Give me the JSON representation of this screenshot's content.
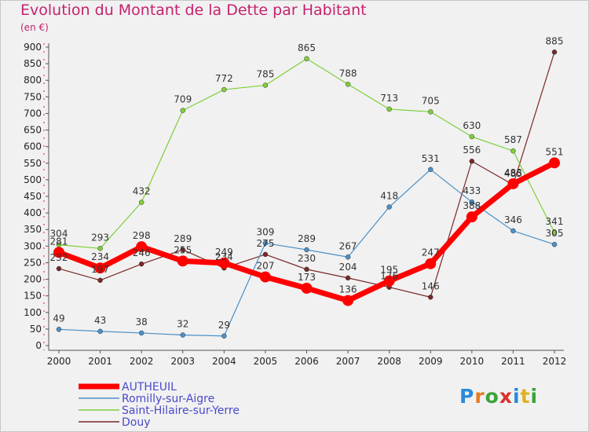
{
  "title": "Evolution du Montant de la Dette par Habitant",
  "unit": "(en €)",
  "logo": [
    "P",
    "r",
    "o",
    "x",
    "i",
    "t",
    "i"
  ],
  "chart_data": {
    "type": "line",
    "title": "Evolution du Montant de la Dette par Habitant",
    "ylabel": "(en €)",
    "ylim": [
      0,
      900
    ],
    "yticks": [
      0,
      50,
      100,
      150,
      200,
      250,
      300,
      350,
      400,
      450,
      500,
      550,
      600,
      650,
      700,
      750,
      800,
      850,
      900
    ],
    "x": [
      "2000",
      "2001",
      "2002",
      "2003",
      "2004",
      "2005",
      "2006",
      "2007",
      "2008",
      "2009",
      "2010",
      "2011",
      "2012"
    ],
    "grid": false,
    "legend": "bottom-left",
    "series": [
      {
        "name": "AUTHEUIL",
        "color": "#ff0000",
        "values": [
          281,
          234,
          298,
          255,
          249,
          207,
          173,
          136,
          195,
          247,
          388,
          488,
          551
        ],
        "labels": [
          "281",
          "234",
          "298",
          "255",
          "249",
          "207",
          "173",
          "136",
          "195",
          "247",
          "388",
          "488",
          "551"
        ]
      },
      {
        "name": "Romilly-sur-Aigre",
        "color": "#4a90c8",
        "values": [
          49,
          43,
          38,
          32,
          29,
          309,
          289,
          267,
          418,
          531,
          433,
          346,
          305
        ],
        "labels": [
          "49",
          "43",
          "38",
          "32",
          "29",
          "309",
          "289",
          "267",
          "418",
          "531",
          "433",
          "346",
          "305"
        ]
      },
      {
        "name": "Saint-Hilaire-sur-Yerre",
        "color": "#7ecf3a",
        "values": [
          304,
          293,
          432,
          709,
          772,
          785,
          865,
          788,
          713,
          705,
          630,
          587,
          341
        ],
        "labels": [
          "304",
          "293",
          "432",
          "709",
          "772",
          "785",
          "865",
          "788",
          "713",
          "705",
          "630",
          "587",
          "341"
        ]
      },
      {
        "name": "Douy",
        "color": "#7a2828",
        "values": [
          232,
          197,
          246,
          289,
          234,
          275,
          230,
          204,
          176,
          146,
          556,
          485,
          885
        ],
        "labels": [
          "232",
          "197",
          "246",
          "289",
          "234",
          "275",
          "230",
          "204",
          "176",
          "146",
          "556",
          "485",
          "885"
        ]
      }
    ]
  }
}
